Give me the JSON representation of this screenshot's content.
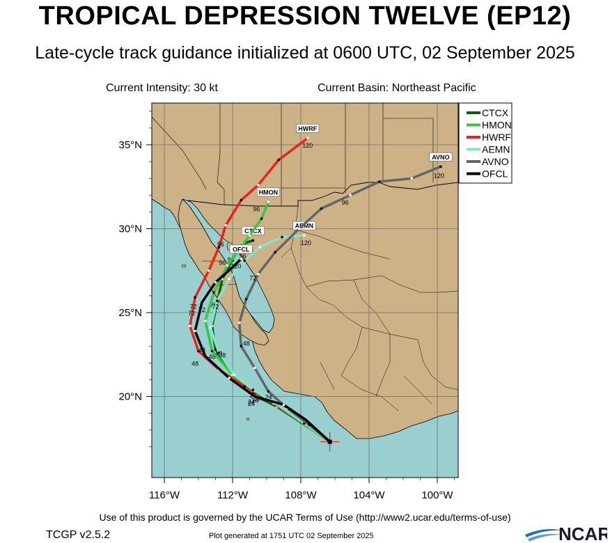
{
  "header": {
    "title": "TROPICAL DEPRESSION TWELVE (EP12)",
    "subtitle": "Late-cycle track guidance initialized at 0600 UTC, 02 September 2025"
  },
  "info": {
    "intensity": "Current Intensity: 30 kt",
    "basin": "Current Basin: Northeast Pacific"
  },
  "map": {
    "lon_ticks": [
      "116°W",
      "112°W",
      "108°W",
      "104°W",
      "100°W"
    ],
    "lat_ticks": [
      "35°N",
      "30°N",
      "25°N",
      "20°N"
    ],
    "colors": {
      "ocean": "#9acfd0",
      "land": "#cdb187",
      "border": "#000000",
      "grid": "#6e6e6e"
    }
  },
  "legend": [
    {
      "name": "CTCX",
      "color": "#0a5d14"
    },
    {
      "name": "HMON",
      "color": "#3cc43c"
    },
    {
      "name": "HWRF",
      "color": "#e8231e"
    },
    {
      "name": "AEMN",
      "color": "#80e6c8"
    },
    {
      "name": "AVNO",
      "color": "#646464"
    },
    {
      "name": "OFCL",
      "color": "#000000"
    }
  ],
  "chart_data": {
    "type": "scatter",
    "storm_position": {
      "lon": -106.3,
      "lat": 17.3
    },
    "tracks": [
      {
        "name": "CTCX",
        "color": "#0a5d14",
        "end_label": "CTCX",
        "points": [
          [
            -106.3,
            17.3
          ],
          [
            -107.6,
            18.2
          ],
          [
            -109.4,
            19.4
          ],
          [
            -110.6,
            20.0
          ],
          [
            -111.9,
            21.2
          ],
          [
            -113.0,
            22.8
          ],
          [
            -113.2,
            24.2
          ],
          [
            -112.9,
            25.6
          ],
          [
            -112.6,
            27.0
          ],
          [
            -112.0,
            28.2
          ],
          [
            -111.4,
            29.1
          ],
          [
            -110.8,
            29.3
          ]
        ],
        "hour_labels": [
          {
            "hour": "24",
            "lon": -110.7,
            "lat": 19.8
          },
          {
            "hour": "48",
            "lon": -113.2,
            "lat": 22.4
          },
          {
            "hour": "72",
            "lon": -113.1,
            "lat": 25.5
          },
          {
            "hour": "96",
            "lon": -112.1,
            "lat": 28.2
          },
          {
            "hour": "120",
            "lon": -111.1,
            "lat": 28.7
          }
        ]
      },
      {
        "name": "HMON",
        "color": "#3cc43c",
        "end_label": "HMON",
        "points": [
          [
            -106.3,
            17.3
          ],
          [
            -108.0,
            18.5
          ],
          [
            -109.6,
            19.6
          ],
          [
            -110.8,
            20.2
          ],
          [
            -112.0,
            21.3
          ],
          [
            -113.2,
            22.7
          ],
          [
            -113.6,
            24.5
          ],
          [
            -113.1,
            26.2
          ],
          [
            -112.3,
            27.8
          ],
          [
            -111.5,
            28.9
          ],
          [
            -111.0,
            29.6
          ],
          [
            -110.3,
            30.6
          ],
          [
            -109.9,
            31.6
          ]
        ],
        "hour_labels": [
          {
            "hour": "24",
            "lon": -110.6,
            "lat": 19.9
          },
          {
            "hour": "48",
            "lon": -112.8,
            "lat": 22.6
          },
          {
            "hour": "72",
            "lon": -113.8,
            "lat": 25.2
          },
          {
            "hour": "96",
            "lon": -110.6,
            "lat": 31.2
          }
        ]
      },
      {
        "name": "HWRF",
        "color": "#e8231e",
        "end_label": "HWRF",
        "points": [
          [
            -106.3,
            17.3
          ],
          [
            -107.8,
            18.4
          ],
          [
            -109.6,
            19.6
          ],
          [
            -111.3,
            20.6
          ],
          [
            -112.8,
            21.6
          ],
          [
            -114.0,
            22.7
          ],
          [
            -114.5,
            24.2
          ],
          [
            -114.2,
            25.9
          ],
          [
            -113.4,
            27.5
          ],
          [
            -112.8,
            28.9
          ],
          [
            -112.4,
            30.2
          ],
          [
            -111.5,
            31.7
          ],
          [
            -110.5,
            32.6
          ],
          [
            -109.3,
            34.1
          ],
          [
            -107.6,
            35.4
          ]
        ],
        "hour_labels": [
          {
            "hour": "24",
            "lon": -110.8,
            "lat": 20.1
          },
          {
            "hour": "48",
            "lon": -113.8,
            "lat": 22.8
          },
          {
            "hour": "72",
            "lon": -114.4,
            "lat": 25.0
          },
          {
            "hour": "96",
            "lon": -112.7,
            "lat": 29.1
          },
          {
            "hour": "120",
            "lon": -107.6,
            "lat": 35.0
          }
        ]
      },
      {
        "name": "AEMN",
        "color": "#80e6c8",
        "end_label": "AEMN",
        "points": [
          [
            -106.3,
            17.3
          ],
          [
            -107.8,
            18.4
          ],
          [
            -109.5,
            19.6
          ],
          [
            -110.8,
            20.4
          ],
          [
            -111.9,
            21.3
          ],
          [
            -112.8,
            22.6
          ],
          [
            -113.3,
            24.1
          ],
          [
            -112.9,
            25.7
          ],
          [
            -112.2,
            27.0
          ],
          [
            -111.3,
            28.1
          ],
          [
            -110.4,
            28.9
          ],
          [
            -109.1,
            29.5
          ],
          [
            -107.8,
            29.6
          ]
        ],
        "hour_labels": [
          {
            "hour": "24",
            "lon": -110.9,
            "lat": 19.7
          },
          {
            "hour": "48",
            "lon": -112.6,
            "lat": 22.5
          },
          {
            "hour": "72",
            "lon": -113.0,
            "lat": 25.4
          },
          {
            "hour": "96",
            "lon": -111.4,
            "lat": 28.4
          },
          {
            "hour": "120",
            "lon": -107.7,
            "lat": 29.2
          }
        ]
      },
      {
        "name": "AVNO",
        "color": "#646464",
        "end_label": "AVNO",
        "points": [
          [
            -106.3,
            17.3
          ],
          [
            -107.5,
            18.3
          ],
          [
            -108.8,
            19.3
          ],
          [
            -109.9,
            20.3
          ],
          [
            -110.7,
            21.7
          ],
          [
            -111.5,
            23.0
          ],
          [
            -111.6,
            24.4
          ],
          [
            -111.2,
            25.8
          ],
          [
            -110.5,
            27.3
          ],
          [
            -109.5,
            28.6
          ],
          [
            -108.1,
            30.0
          ],
          [
            -106.8,
            31.2
          ],
          [
            -105.1,
            32.0
          ],
          [
            -103.4,
            32.8
          ],
          [
            -101.5,
            33.0
          ],
          [
            -99.8,
            33.7
          ]
        ],
        "hour_labels": [
          {
            "hour": "24",
            "lon": -109.9,
            "lat": 20.0
          },
          {
            "hour": "48",
            "lon": -111.2,
            "lat": 23.2
          },
          {
            "hour": "72",
            "lon": -110.8,
            "lat": 27.1
          },
          {
            "hour": "96",
            "lon": -105.4,
            "lat": 31.6
          },
          {
            "hour": "120",
            "lon": -99.9,
            "lat": 33.2
          }
        ]
      },
      {
        "name": "OFCL",
        "color": "#000000",
        "end_label": "OFCL",
        "points": [
          [
            -106.3,
            17.3
          ],
          [
            -107.7,
            18.6
          ],
          [
            -109.0,
            19.5
          ],
          [
            -110.7,
            20.0
          ],
          [
            -112.2,
            21.1
          ],
          [
            -113.6,
            22.4
          ],
          [
            -114.2,
            23.9
          ],
          [
            -113.8,
            25.6
          ],
          [
            -113.0,
            26.8
          ],
          [
            -112.0,
            27.7
          ],
          [
            -111.5,
            28.2
          ]
        ],
        "hour_labels": [
          {
            "hour": "24",
            "lon": -110.9,
            "lat": 19.6
          },
          {
            "hour": "48",
            "lon": -114.2,
            "lat": 22.0
          },
          {
            "hour": "72",
            "lon": -114.3,
            "lat": 25.4
          },
          {
            "hour": "96",
            "lon": -112.6,
            "lat": 28.0
          },
          {
            "hour": "120",
            "lon": -111.8,
            "lat": 27.8
          }
        ]
      }
    ]
  },
  "footer": {
    "terms": "Use of this product is governed by the UCAR Terms of Use (http://www2.ucar.edu/terms-of-use)",
    "version": "TCGP v2.5.2",
    "generated": "Plot generated at 1751 UTC   02 September 2025",
    "logo": "NCAR"
  }
}
